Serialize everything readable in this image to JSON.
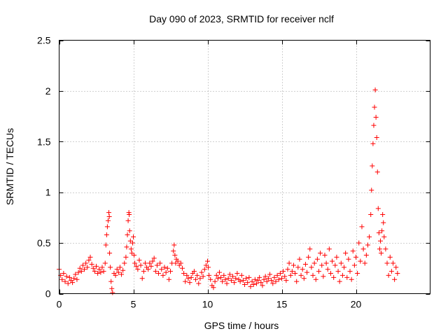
{
  "chart_data": {
    "type": "scatter",
    "title": "Day 090 of 2023, SRMTID for receiver nclf",
    "xlabel": "GPS time / hours",
    "ylabel": "SRMTID / TECUs",
    "xlim": [
      0,
      25
    ],
    "ylim": [
      0,
      2.5
    ],
    "x_ticks": [
      0,
      5,
      10,
      15,
      20
    ],
    "x_tick_labels": [
      "0",
      "5",
      "10",
      "15",
      "20"
    ],
    "y_ticks": [
      0,
      0.5,
      1,
      1.5,
      2,
      2.5
    ],
    "y_tick_labels": [
      "0",
      "0.5",
      "1",
      "1.5",
      "2",
      "2.5"
    ],
    "grid": true,
    "marker": "+",
    "color": "#ff0000",
    "series": [
      {
        "name": "SRMTID",
        "points": [
          [
            0.0,
            0.24
          ],
          [
            0.1,
            0.18
          ],
          [
            0.2,
            0.14
          ],
          [
            0.3,
            0.2
          ],
          [
            0.4,
            0.12
          ],
          [
            0.5,
            0.17
          ],
          [
            0.6,
            0.1
          ],
          [
            0.7,
            0.16
          ],
          [
            0.8,
            0.13
          ],
          [
            0.9,
            0.11
          ],
          [
            1.0,
            0.15
          ],
          [
            1.1,
            0.19
          ],
          [
            1.2,
            0.14
          ],
          [
            1.3,
            0.21
          ],
          [
            1.4,
            0.25
          ],
          [
            1.5,
            0.22
          ],
          [
            1.6,
            0.28
          ],
          [
            1.7,
            0.24
          ],
          [
            1.8,
            0.3
          ],
          [
            1.9,
            0.26
          ],
          [
            2.0,
            0.33
          ],
          [
            2.1,
            0.36
          ],
          [
            2.2,
            0.29
          ],
          [
            2.3,
            0.25
          ],
          [
            2.4,
            0.22
          ],
          [
            2.5,
            0.27
          ],
          [
            2.6,
            0.2
          ],
          [
            2.7,
            0.24
          ],
          [
            2.8,
            0.21
          ],
          [
            2.9,
            0.26
          ],
          [
            3.0,
            0.22
          ],
          [
            3.1,
            0.3
          ],
          [
            3.15,
            0.48
          ],
          [
            3.2,
            0.58
          ],
          [
            3.25,
            0.66
          ],
          [
            3.3,
            0.72
          ],
          [
            3.35,
            0.8
          ],
          [
            3.38,
            0.76
          ],
          [
            3.4,
            0.4
          ],
          [
            3.45,
            0.26
          ],
          [
            3.5,
            0.12
          ],
          [
            3.55,
            0.05
          ],
          [
            3.6,
            0.01
          ],
          [
            3.7,
            0.2
          ],
          [
            3.8,
            0.18
          ],
          [
            3.9,
            0.24
          ],
          [
            4.0,
            0.21
          ],
          [
            4.1,
            0.26
          ],
          [
            4.2,
            0.19
          ],
          [
            4.3,
            0.23
          ],
          [
            4.4,
            0.3
          ],
          [
            4.5,
            0.36
          ],
          [
            4.55,
            0.46
          ],
          [
            4.6,
            0.58
          ],
          [
            4.65,
            0.72
          ],
          [
            4.7,
            0.8
          ],
          [
            4.72,
            0.78
          ],
          [
            4.75,
            0.62
          ],
          [
            4.8,
            0.52
          ],
          [
            4.85,
            0.44
          ],
          [
            4.9,
            0.4
          ],
          [
            4.95,
            0.5
          ],
          [
            5.0,
            0.56
          ],
          [
            5.05,
            0.38
          ],
          [
            5.1,
            0.3
          ],
          [
            5.2,
            0.27
          ],
          [
            5.3,
            0.24
          ],
          [
            5.4,
            0.33
          ],
          [
            5.5,
            0.28
          ],
          [
            5.6,
            0.15
          ],
          [
            5.7,
            0.22
          ],
          [
            5.8,
            0.3
          ],
          [
            5.9,
            0.26
          ],
          [
            6.0,
            0.24
          ],
          [
            6.1,
            0.3
          ],
          [
            6.2,
            0.27
          ],
          [
            6.3,
            0.32
          ],
          [
            6.4,
            0.35
          ],
          [
            6.5,
            0.22
          ],
          [
            6.6,
            0.28
          ],
          [
            6.7,
            0.2
          ],
          [
            6.8,
            0.3
          ],
          [
            6.9,
            0.24
          ],
          [
            7.0,
            0.18
          ],
          [
            7.1,
            0.26
          ],
          [
            7.2,
            0.21
          ],
          [
            7.3,
            0.25
          ],
          [
            7.4,
            0.14
          ],
          [
            7.5,
            0.22
          ],
          [
            7.6,
            0.3
          ],
          [
            7.7,
            0.42
          ],
          [
            7.75,
            0.48
          ],
          [
            7.8,
            0.38
          ],
          [
            7.85,
            0.3
          ],
          [
            7.9,
            0.34
          ],
          [
            8.0,
            0.32
          ],
          [
            8.1,
            0.28
          ],
          [
            8.2,
            0.3
          ],
          [
            8.3,
            0.25
          ],
          [
            8.4,
            0.2
          ],
          [
            8.5,
            0.12
          ],
          [
            8.6,
            0.18
          ],
          [
            8.7,
            0.15
          ],
          [
            8.8,
            0.11
          ],
          [
            8.9,
            0.16
          ],
          [
            9.0,
            0.2
          ],
          [
            9.1,
            0.22
          ],
          [
            9.2,
            0.14
          ],
          [
            9.3,
            0.18
          ],
          [
            9.4,
            0.1
          ],
          [
            9.5,
            0.15
          ],
          [
            9.6,
            0.21
          ],
          [
            9.7,
            0.17
          ],
          [
            9.8,
            0.24
          ],
          [
            9.9,
            0.28
          ],
          [
            10.0,
            0.32
          ],
          [
            10.05,
            0.26
          ],
          [
            10.1,
            0.18
          ],
          [
            10.2,
            0.14
          ],
          [
            10.3,
            0.08
          ],
          [
            10.4,
            0.06
          ],
          [
            10.5,
            0.12
          ],
          [
            10.6,
            0.18
          ],
          [
            10.7,
            0.15
          ],
          [
            10.8,
            0.21
          ],
          [
            10.9,
            0.16
          ],
          [
            11.0,
            0.12
          ],
          [
            11.1,
            0.18
          ],
          [
            11.2,
            0.14
          ],
          [
            11.3,
            0.1
          ],
          [
            11.4,
            0.15
          ],
          [
            11.5,
            0.19
          ],
          [
            11.6,
            0.13
          ],
          [
            11.7,
            0.17
          ],
          [
            11.8,
            0.11
          ],
          [
            11.9,
            0.15
          ],
          [
            12.0,
            0.2
          ],
          [
            12.1,
            0.14
          ],
          [
            12.2,
            0.12
          ],
          [
            12.3,
            0.18
          ],
          [
            12.4,
            0.13
          ],
          [
            12.5,
            0.09
          ],
          [
            12.6,
            0.15
          ],
          [
            12.7,
            0.11
          ],
          [
            12.8,
            0.16
          ],
          [
            12.9,
            0.07
          ],
          [
            13.0,
            0.12
          ],
          [
            13.1,
            0.09
          ],
          [
            13.2,
            0.14
          ],
          [
            13.3,
            0.1
          ],
          [
            13.4,
            0.13
          ],
          [
            13.5,
            0.16
          ],
          [
            13.6,
            0.11
          ],
          [
            13.7,
            0.08
          ],
          [
            13.8,
            0.14
          ],
          [
            13.9,
            0.17
          ],
          [
            14.0,
            0.12
          ],
          [
            14.1,
            0.15
          ],
          [
            14.2,
            0.19
          ],
          [
            14.3,
            0.13
          ],
          [
            14.4,
            0.1
          ],
          [
            14.5,
            0.16
          ],
          [
            14.6,
            0.12
          ],
          [
            14.7,
            0.18
          ],
          [
            14.8,
            0.14
          ],
          [
            14.9,
            0.2
          ],
          [
            15.0,
            0.15
          ],
          [
            15.1,
            0.22
          ],
          [
            15.2,
            0.17
          ],
          [
            15.3,
            0.13
          ],
          [
            15.4,
            0.24
          ],
          [
            15.5,
            0.3
          ],
          [
            15.6,
            0.18
          ],
          [
            15.7,
            0.22
          ],
          [
            15.8,
            0.28
          ],
          [
            15.9,
            0.2
          ],
          [
            16.0,
            0.12
          ],
          [
            16.1,
            0.26
          ],
          [
            16.2,
            0.34
          ],
          [
            16.3,
            0.18
          ],
          [
            16.4,
            0.24
          ],
          [
            16.5,
            0.15
          ],
          [
            16.6,
            0.29
          ],
          [
            16.7,
            0.21
          ],
          [
            16.8,
            0.36
          ],
          [
            16.9,
            0.44
          ],
          [
            17.0,
            0.26
          ],
          [
            17.1,
            0.18
          ],
          [
            17.2,
            0.3
          ],
          [
            17.3,
            0.14
          ],
          [
            17.4,
            0.34
          ],
          [
            17.5,
            0.22
          ],
          [
            17.6,
            0.4
          ],
          [
            17.7,
            0.28
          ],
          [
            17.8,
            0.17
          ],
          [
            17.9,
            0.38
          ],
          [
            18.0,
            0.3
          ],
          [
            18.1,
            0.24
          ],
          [
            18.2,
            0.44
          ],
          [
            18.3,
            0.2
          ],
          [
            18.4,
            0.32
          ],
          [
            18.5,
            0.16
          ],
          [
            18.6,
            0.28
          ],
          [
            18.7,
            0.36
          ],
          [
            18.8,
            0.22
          ],
          [
            18.9,
            0.12
          ],
          [
            19.0,
            0.3
          ],
          [
            19.1,
            0.18
          ],
          [
            19.2,
            0.26
          ],
          [
            19.3,
            0.4
          ],
          [
            19.4,
            0.16
          ],
          [
            19.5,
            0.34
          ],
          [
            19.6,
            0.22
          ],
          [
            19.7,
            0.14
          ],
          [
            19.8,
            0.42
          ],
          [
            19.9,
            0.28
          ],
          [
            20.0,
            0.36
          ],
          [
            20.1,
            0.2
          ],
          [
            20.2,
            0.5
          ],
          [
            20.3,
            0.32
          ],
          [
            20.4,
            0.66
          ],
          [
            20.5,
            0.44
          ],
          [
            20.6,
            0.3
          ],
          [
            20.7,
            0.38
          ],
          [
            20.8,
            0.48
          ],
          [
            20.9,
            0.56
          ],
          [
            21.0,
            0.78
          ],
          [
            21.05,
            1.02
          ],
          [
            21.1,
            1.26
          ],
          [
            21.15,
            1.48
          ],
          [
            21.2,
            1.66
          ],
          [
            21.25,
            1.84
          ],
          [
            21.3,
            2.01
          ],
          [
            21.35,
            1.74
          ],
          [
            21.4,
            1.54
          ],
          [
            21.45,
            1.2
          ],
          [
            21.5,
            0.84
          ],
          [
            21.55,
            0.6
          ],
          [
            21.6,
            0.44
          ],
          [
            21.65,
            0.52
          ],
          [
            21.7,
            0.4
          ],
          [
            21.75,
            0.62
          ],
          [
            21.8,
            0.78
          ],
          [
            21.85,
            0.7
          ],
          [
            21.9,
            0.56
          ],
          [
            22.0,
            0.44
          ],
          [
            22.1,
            0.3
          ],
          [
            22.2,
            0.18
          ],
          [
            22.3,
            0.36
          ],
          [
            22.4,
            0.22
          ],
          [
            22.5,
            0.3
          ],
          [
            22.6,
            0.14
          ],
          [
            22.7,
            0.26
          ],
          [
            22.8,
            0.2
          ]
        ]
      }
    ]
  }
}
